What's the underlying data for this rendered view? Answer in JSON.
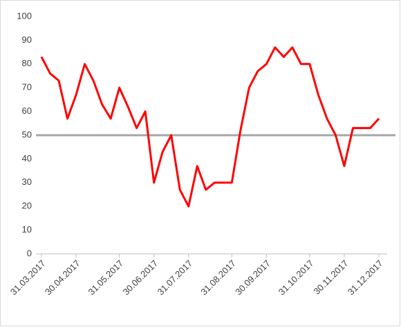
{
  "chart_data": {
    "type": "line",
    "categories": [
      "31.03.2017",
      null,
      null,
      null,
      "30.04.2017",
      null,
      null,
      null,
      null,
      "31.05.2017",
      null,
      null,
      null,
      "30.06.2017",
      null,
      null,
      null,
      "31.07.2017",
      null,
      null,
      null,
      null,
      "31.08.2017",
      null,
      null,
      null,
      "30.09.2017",
      null,
      null,
      null,
      null,
      "31.10.2017",
      null,
      null,
      null,
      "30.11.2017",
      null,
      null,
      null,
      "31.12.2017"
    ],
    "series": [
      {
        "color": "#ff0000",
        "values": [
          83,
          76,
          73,
          57,
          67,
          80,
          73,
          63,
          57,
          70,
          62,
          53,
          60,
          30,
          43,
          50,
          27,
          20,
          37,
          27,
          30,
          30,
          30,
          52,
          70,
          77,
          80,
          87,
          83,
          87,
          80,
          80,
          67,
          57,
          50,
          37,
          53,
          53,
          53,
          57
        ]
      }
    ],
    "reference_line": {
      "value": 50,
      "color": "#a6a6a6"
    },
    "ylim": [
      0,
      100
    ],
    "yticks": [
      0,
      10,
      20,
      30,
      40,
      50,
      60,
      70,
      80,
      90,
      100
    ],
    "grid": false
  }
}
